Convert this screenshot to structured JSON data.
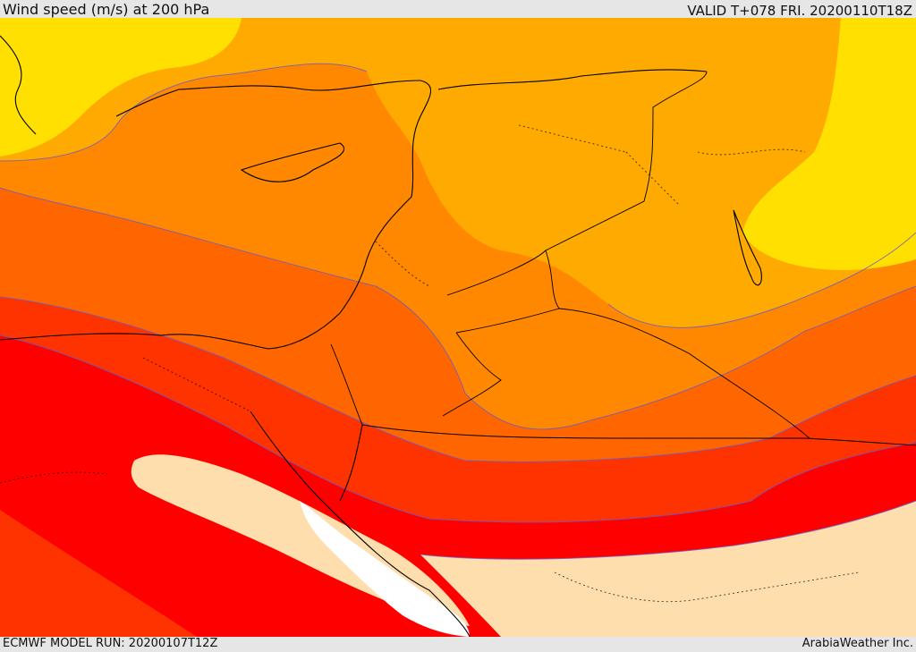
{
  "header": {
    "title": "Wind speed (m/s) at 200 hPa",
    "valid": "VALID T+078 FRI. 20200110T18Z"
  },
  "footer": {
    "model_run": "ECMWF MODEL RUN: 20200107T12Z",
    "credit": "ArabiaWeather Inc."
  },
  "colors": {
    "yellow": "#ffe000",
    "light_orange": "#ffaa00",
    "orange": "#ff8800",
    "dark_orange": "#ff6600",
    "red_orange": "#ff3300",
    "red": "#ff0000",
    "peach": "#ffdead",
    "water": "#ffffff",
    "contour": "#6a5acd",
    "coast": "#000000"
  }
}
